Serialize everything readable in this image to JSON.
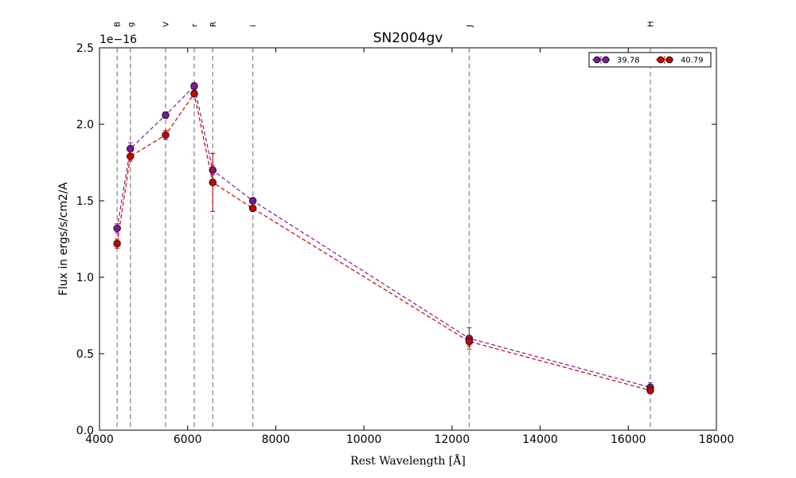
{
  "chart_data": {
    "type": "scatter",
    "title": "SN2004gv",
    "xlabel": "Rest Wavelength [Å]",
    "ylabel": "Flux in ergs/s/cm2/A",
    "y_offset_label": "1e−16",
    "xlim": [
      4000,
      18000
    ],
    "ylim": [
      0.0,
      2.5
    ],
    "x_ticks": [
      4000,
      6000,
      8000,
      10000,
      12000,
      14000,
      16000,
      18000
    ],
    "y_ticks": [
      0.0,
      0.5,
      1.0,
      1.5,
      2.0,
      2.5
    ],
    "x_tick_labels": [
      "4000",
      "6000",
      "8000",
      "10000",
      "12000",
      "14000",
      "16000",
      "18000"
    ],
    "y_tick_labels": [
      "0.0",
      "0.5",
      "1.0",
      "1.5",
      "2.0",
      "2.5"
    ],
    "grid": false,
    "legend_position": "top-right",
    "bands": [
      {
        "name": "B",
        "x": 4400
      },
      {
        "name": "g",
        "x": 4700
      },
      {
        "name": "V",
        "x": 5500
      },
      {
        "name": "r",
        "x": 6150
      },
      {
        "name": "R",
        "x": 6570
      },
      {
        "name": "i",
        "x": 7480
      },
      {
        "name": "J",
        "x": 12390
      },
      {
        "name": "H",
        "x": 16500
      }
    ],
    "series": [
      {
        "name": "39.78",
        "color": "#7b1a99",
        "x": [
          4400,
          4700,
          5500,
          6150,
          6570,
          7480,
          12390,
          16500
        ],
        "y": [
          1.32,
          1.84,
          2.06,
          2.25,
          1.7,
          1.5,
          0.6,
          0.28
        ],
        "err": [
          0.03,
          0.04,
          0.02,
          0.02,
          0.03,
          0.01,
          0.07,
          0.03
        ]
      },
      {
        "name": "40.79",
        "color": "#cc0000",
        "x": [
          4400,
          4700,
          5500,
          6150,
          6570,
          7480,
          12390,
          16500
        ],
        "y": [
          1.22,
          1.79,
          1.93,
          2.2,
          1.62,
          1.45,
          0.58,
          0.26
        ],
        "err": [
          0.03,
          0.03,
          0.03,
          0.02,
          0.19,
          0.01,
          0.03,
          0.02
        ]
      }
    ]
  }
}
